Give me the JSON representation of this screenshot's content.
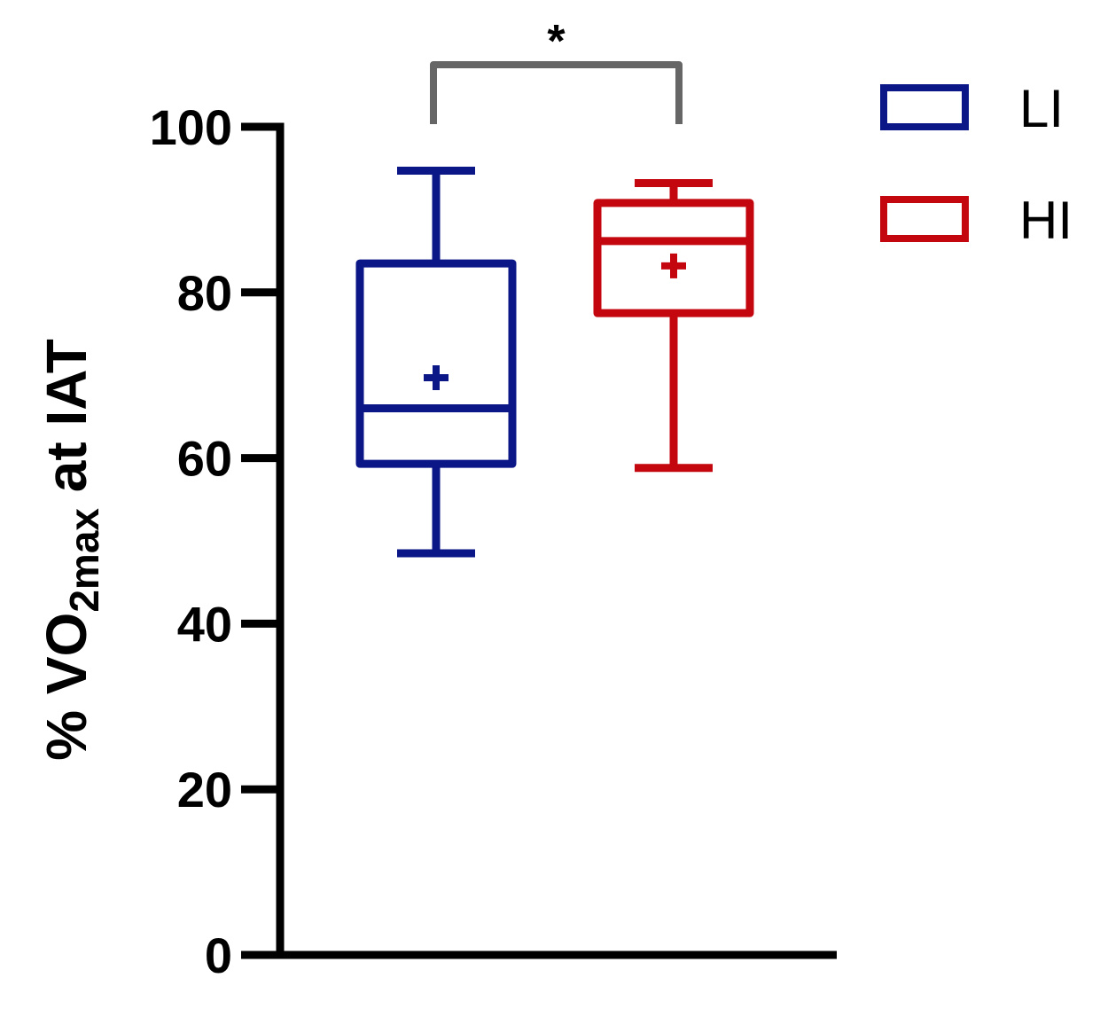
{
  "chart_data": {
    "type": "box",
    "ylabel": {
      "prefix": "% VO",
      "subscript": "2max",
      "suffix": " at IAT"
    },
    "ylim": [
      0,
      100
    ],
    "yticks": [
      0,
      20,
      40,
      60,
      80,
      100
    ],
    "grid": false,
    "legend_position": "top-right",
    "series": [
      {
        "name": "LI",
        "color": "#0b1687",
        "whisker_low": 48.5,
        "q1": 59.3,
        "median": 66.0,
        "q3": 83.5,
        "whisker_high": 94.7,
        "mean": 69.7
      },
      {
        "name": "HI",
        "color": "#c4060f",
        "whisker_low": 58.8,
        "q1": 77.5,
        "median": 86.2,
        "q3": 90.8,
        "whisker_high": 93.2,
        "mean": 83.2
      }
    ],
    "significance": {
      "label": "*",
      "from": "LI",
      "to": "HI",
      "color": "#666666"
    }
  }
}
